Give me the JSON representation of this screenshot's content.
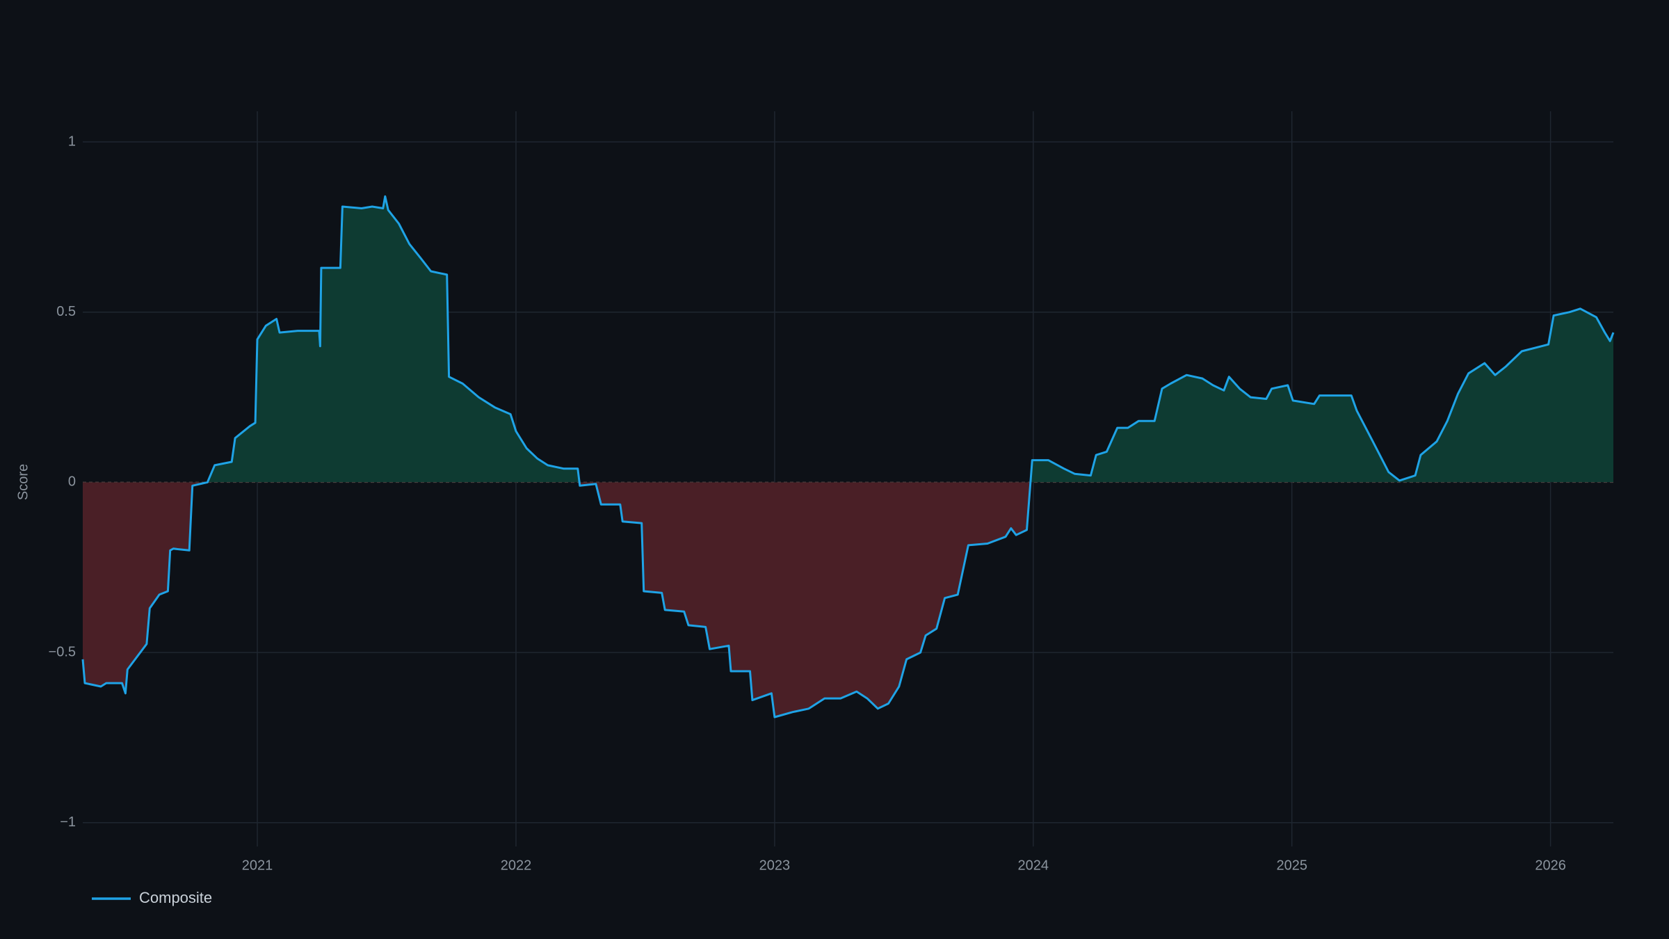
{
  "chart_data": {
    "type": "area",
    "y_label": "Score",
    "x": [
      2020.325,
      2020.333,
      2020.395,
      2020.416,
      2020.477,
      2020.49,
      2020.498,
      2020.572,
      2020.584,
      2020.621,
      2020.654,
      2020.663,
      2020.675,
      2020.737,
      2020.749,
      2020.807,
      2020.835,
      2020.901,
      2020.914,
      2020.971,
      2020.992,
      2021.0,
      2021.033,
      2021.074,
      2021.086,
      2021.156,
      2021.239,
      2021.243,
      2021.247,
      2021.321,
      2021.329,
      2021.403,
      2021.444,
      2021.486,
      2021.494,
      2021.506,
      2021.547,
      2021.588,
      2021.63,
      2021.671,
      2021.733,
      2021.741,
      2021.794,
      2021.856,
      2021.918,
      2021.979,
      2022.0,
      2022.041,
      2022.082,
      2022.123,
      2022.185,
      2022.239,
      2022.247,
      2022.309,
      2022.329,
      2022.403,
      2022.412,
      2022.486,
      2022.494,
      2022.564,
      2022.576,
      2022.65,
      2022.667,
      2022.733,
      2022.749,
      2022.823,
      2022.831,
      2022.905,
      2022.914,
      2022.988,
      2023.0,
      2023.07,
      2023.132,
      2023.193,
      2023.255,
      2023.317,
      2023.358,
      2023.399,
      2023.44,
      2023.481,
      2023.51,
      2023.564,
      2023.584,
      2023.626,
      2023.658,
      2023.708,
      2023.749,
      2023.823,
      2023.893,
      2023.914,
      2023.934,
      2023.975,
      2023.996,
      2024.058,
      2024.119,
      2024.16,
      2024.222,
      2024.243,
      2024.284,
      2024.325,
      2024.366,
      2024.407,
      2024.469,
      2024.498,
      2024.531,
      2024.593,
      2024.654,
      2024.695,
      2024.737,
      2024.757,
      2024.798,
      2024.84,
      2024.901,
      2024.922,
      2024.984,
      2025.004,
      2025.086,
      2025.107,
      2025.23,
      2025.251,
      2025.313,
      2025.374,
      2025.416,
      2025.477,
      2025.498,
      2025.56,
      2025.601,
      2025.642,
      2025.683,
      2025.745,
      2025.786,
      2025.827,
      2025.889,
      2025.992,
      2026.012,
      2026.074,
      2026.115,
      2026.177,
      2026.21,
      2026.23,
      2026.243
    ],
    "series": [
      {
        "name": "Composite",
        "color": "#1fa3e6",
        "values": [
          -0.52,
          -0.59,
          -0.6,
          -0.59,
          -0.59,
          -0.62,
          -0.55,
          -0.475,
          -0.37,
          -0.33,
          -0.32,
          -0.2,
          -0.195,
          -0.2,
          -0.01,
          0.0,
          0.05,
          0.06,
          0.13,
          0.165,
          0.175,
          0.42,
          0.46,
          0.48,
          0.44,
          0.445,
          0.445,
          0.4,
          0.63,
          0.63,
          0.81,
          0.805,
          0.81,
          0.805,
          0.84,
          0.8,
          0.76,
          0.7,
          0.66,
          0.62,
          0.61,
          0.31,
          0.29,
          0.25,
          0.22,
          0.2,
          0.15,
          0.1,
          0.07,
          0.05,
          0.04,
          0.04,
          -0.01,
          -0.005,
          -0.065,
          -0.065,
          -0.115,
          -0.12,
          -0.32,
          -0.325,
          -0.375,
          -0.38,
          -0.42,
          -0.425,
          -0.49,
          -0.48,
          -0.555,
          -0.555,
          -0.64,
          -0.62,
          -0.69,
          -0.675,
          -0.665,
          -0.635,
          -0.635,
          -0.615,
          -0.635,
          -0.665,
          -0.65,
          -0.6,
          -0.52,
          -0.5,
          -0.45,
          -0.43,
          -0.34,
          -0.33,
          -0.185,
          -0.18,
          -0.16,
          -0.135,
          -0.155,
          -0.14,
          0.065,
          0.065,
          0.04,
          0.025,
          0.02,
          0.08,
          0.09,
          0.16,
          0.16,
          0.18,
          0.18,
          0.275,
          0.29,
          0.315,
          0.305,
          0.285,
          0.27,
          0.31,
          0.275,
          0.25,
          0.245,
          0.275,
          0.285,
          0.24,
          0.23,
          0.255,
          0.255,
          0.21,
          0.12,
          0.03,
          0.005,
          0.02,
          0.08,
          0.12,
          0.18,
          0.26,
          0.32,
          0.35,
          0.315,
          0.34,
          0.385,
          0.405,
          0.49,
          0.5,
          0.51,
          0.485,
          0.44,
          0.415,
          0.44
        ]
      }
    ],
    "positive_fill": "#0e3b32",
    "negative_fill": "#4a1f26",
    "xlim": [
      2020.325,
      2026.243
    ],
    "xticks": [
      2021,
      2022,
      2023,
      2024,
      2025,
      2026
    ],
    "ylim": [
      -1.07,
      1.09
    ],
    "yticks": [
      {
        "value": -1,
        "label": "−1"
      },
      {
        "value": -0.5,
        "label": "−0.5"
      },
      0,
      0.5,
      1
    ],
    "grid": true,
    "legend": "bottom-left"
  }
}
